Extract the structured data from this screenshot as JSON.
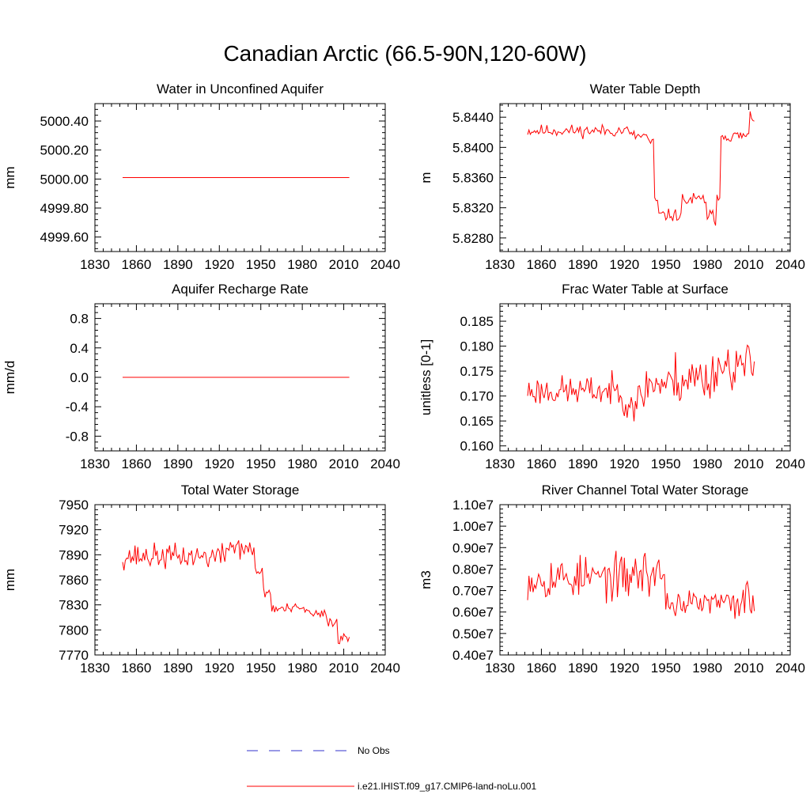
{
  "title": "Canadian Arctic (66.5-90N,120-60W)",
  "colors": {
    "model": "#ff0000",
    "obs": "#3333cc",
    "axis": "#000000"
  },
  "legend": {
    "obs_label": "No Obs",
    "model_label": "i.e21.IHIST.f09_g17.CMIP6-land-noLu.001"
  },
  "chart_data": [
    {
      "type": "line",
      "title": "Water in Unconfined Aquifer",
      "ylabel": "mm",
      "xlim": [
        1830,
        2040
      ],
      "xticks": [
        1830,
        1860,
        1890,
        1920,
        1950,
        1980,
        2010,
        2040
      ],
      "ylim": [
        4999.5,
        5000.52
      ],
      "yticks": [
        4999.6,
        4999.8,
        5000.0,
        5000.2,
        5000.4
      ],
      "ytick_labels": [
        "4999.60",
        "4999.80",
        "5000.00",
        "5000.20",
        "5000.40"
      ],
      "x_start": 1850,
      "x_end": 2014,
      "series": [
        {
          "kind": "constant",
          "value": 5000.01
        }
      ]
    },
    {
      "type": "line",
      "title": "Water Table Depth",
      "ylabel": "m",
      "xlim": [
        1830,
        2040
      ],
      "xticks": [
        1830,
        1860,
        1890,
        1920,
        1950,
        1980,
        2010,
        2040
      ],
      "ylim": [
        5.8262,
        5.8458
      ],
      "yticks": [
        5.828,
        5.832,
        5.836,
        5.84,
        5.844
      ],
      "ytick_labels": [
        "5.8280",
        "5.8320",
        "5.8360",
        "5.8400",
        "5.8440"
      ],
      "x_start": 1850,
      "x_end": 2014,
      "series": [
        {
          "kind": "sampled",
          "segments": [
            {
              "from": 1850,
              "base": 5.8422,
              "amp": 0.0012
            },
            {
              "from": 1925,
              "base": 5.8415,
              "amp": 0.0012
            },
            {
              "from": 1938,
              "base": 5.8405,
              "amp": 0.0012
            },
            {
              "from": 1942,
              "base": 5.833,
              "amp": 0.0015
            },
            {
              "from": 1945,
              "base": 5.831,
              "amp": 0.0012
            },
            {
              "from": 1962,
              "base": 5.833,
              "amp": 0.0015
            },
            {
              "from": 1980,
              "base": 5.831,
              "amp": 0.0015
            },
            {
              "from": 1985,
              "base": 5.8295,
              "amp": 0.0012
            },
            {
              "from": 1987,
              "base": 5.834,
              "amp": 0.0015
            },
            {
              "from": 1990,
              "base": 5.8415,
              "amp": 0.0012
            },
            {
              "from": 2011,
              "base": 5.844,
              "amp": 0.0015
            }
          ],
          "seed": 11
        }
      ]
    },
    {
      "type": "line",
      "title": "Aquifer Recharge Rate",
      "ylabel": "mm/d",
      "xlim": [
        1830,
        2040
      ],
      "xticks": [
        1830,
        1860,
        1890,
        1920,
        1950,
        1980,
        2010,
        2040
      ],
      "ylim": [
        -1.0,
        1.0
      ],
      "yticks": [
        -0.8,
        -0.4,
        0.0,
        0.4,
        0.8
      ],
      "ytick_labels": [
        "-0.8",
        "-0.4",
        "0.0",
        "0.4",
        "0.8"
      ],
      "x_start": 1850,
      "x_end": 2014,
      "series": [
        {
          "kind": "constant",
          "value": 0.0
        }
      ]
    },
    {
      "type": "line",
      "title": "Frac Water Table at Surface",
      "ylabel": "unitless [0-1]",
      "xlim": [
        1830,
        2040
      ],
      "xticks": [
        1830,
        1860,
        1890,
        1920,
        1950,
        1980,
        2010,
        2040
      ],
      "ylim": [
        0.159,
        0.1885
      ],
      "yticks": [
        0.16,
        0.165,
        0.17,
        0.175,
        0.18,
        0.185
      ],
      "ytick_labels": [
        "0.160",
        "0.165",
        "0.170",
        "0.175",
        "0.180",
        "0.185"
      ],
      "x_start": 1850,
      "x_end": 2014,
      "series": [
        {
          "kind": "sampled",
          "segments": [
            {
              "from": 1850,
              "base": 0.171,
              "amp": 0.0045
            },
            {
              "from": 1920,
              "base": 0.169,
              "amp": 0.006
            },
            {
              "from": 1935,
              "base": 0.1725,
              "amp": 0.006
            },
            {
              "from": 1955,
              "base": 0.1735,
              "amp": 0.008
            },
            {
              "from": 1985,
              "base": 0.176,
              "amp": 0.007
            }
          ],
          "seed": 23
        }
      ]
    },
    {
      "type": "line",
      "title": "Total Water Storage",
      "ylabel": "mm",
      "xlim": [
        1830,
        2040
      ],
      "xticks": [
        1830,
        1860,
        1890,
        1920,
        1950,
        1980,
        2010,
        2040
      ],
      "ylim": [
        7770,
        7950
      ],
      "yticks": [
        7770,
        7800,
        7830,
        7860,
        7890,
        7920,
        7950
      ],
      "ytick_labels": [
        "7770",
        "7800",
        "7830",
        "7860",
        "7890",
        "7920",
        "7950"
      ],
      "x_start": 1850,
      "x_end": 2014,
      "series": [
        {
          "kind": "sampled",
          "segments": [
            {
              "from": 1850,
              "base": 7888,
              "amp": 22
            },
            {
              "from": 1925,
              "base": 7900,
              "amp": 22
            },
            {
              "from": 1940,
              "base": 7895,
              "amp": 14
            },
            {
              "from": 1946,
              "base": 7870,
              "amp": 10
            },
            {
              "from": 1952,
              "base": 7845,
              "amp": 10
            },
            {
              "from": 1958,
              "base": 7825,
              "amp": 10
            },
            {
              "from": 1985,
              "base": 7818,
              "amp": 10
            },
            {
              "from": 1998,
              "base": 7810,
              "amp": 10
            },
            {
              "from": 2006,
              "base": 7790,
              "amp": 10
            }
          ],
          "seed": 37
        }
      ]
    },
    {
      "type": "line",
      "title": "River Channel Total Water Storage",
      "ylabel": "m3",
      "xlim": [
        1830,
        2040
      ],
      "xticks": [
        1830,
        1860,
        1890,
        1920,
        1950,
        1980,
        2010,
        2040
      ],
      "ylim": [
        4000000,
        11000000
      ],
      "yticks": [
        4000000,
        5000000,
        6000000,
        7000000,
        8000000,
        9000000,
        10000000,
        11000000
      ],
      "ytick_labels": [
        "0.40e7",
        "0.50e7",
        "0.60e7",
        "0.70e7",
        "0.80e7",
        "0.90e7",
        "1.00e7",
        "1.10e7"
      ],
      "x_start": 1850,
      "x_end": 2014,
      "series": [
        {
          "kind": "sampled",
          "segments": [
            {
              "from": 1850,
              "base": 7600000,
              "amp": 1500000
            },
            {
              "from": 1925,
              "base": 7800000,
              "amp": 1700000
            },
            {
              "from": 1950,
              "base": 6400000,
              "amp": 900000
            },
            {
              "from": 2000,
              "base": 6600000,
              "amp": 1700000
            }
          ],
          "seed": 53
        }
      ]
    }
  ]
}
